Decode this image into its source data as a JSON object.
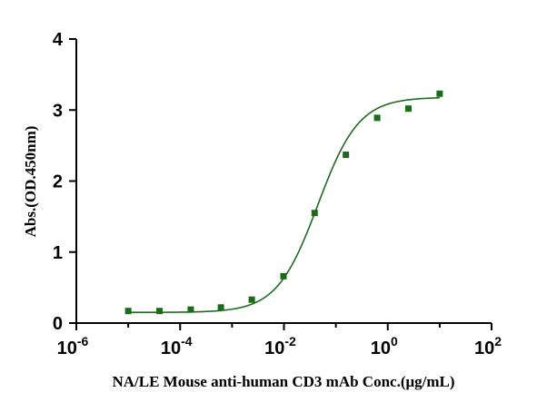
{
  "chart_data": {
    "type": "scatter",
    "x_scale": "log10",
    "xlabel": "NA/LE Mouse anti-human CD3 mAb Conc.(μg/mL)",
    "ylabel": "Abs.(OD.450nm)",
    "xlim": [
      1e-06,
      100
    ],
    "ylim": [
      0,
      4
    ],
    "x_ticks": [
      {
        "base": "10",
        "exp": "-6"
      },
      {
        "base": "10",
        "exp": "-4"
      },
      {
        "base": "10",
        "exp": "-2"
      },
      {
        "base": "10",
        "exp": "0"
      },
      {
        "base": "10",
        "exp": "2"
      }
    ],
    "y_ticks": [
      "0",
      "1",
      "2",
      "3",
      "4"
    ],
    "series": [
      {
        "x": [
          1e-05,
          4e-05,
          0.00016,
          0.00061,
          0.0024,
          0.0098,
          0.039,
          0.156,
          0.625,
          2.5,
          10
        ],
        "y": [
          0.17,
          0.17,
          0.19,
          0.22,
          0.33,
          0.66,
          1.55,
          2.37,
          2.89,
          3.02,
          3.23
        ]
      }
    ],
    "fit_curve": true,
    "grid": false,
    "colors": {
      "points": "#1a6b1a",
      "curve": "#1f6b1f"
    }
  }
}
